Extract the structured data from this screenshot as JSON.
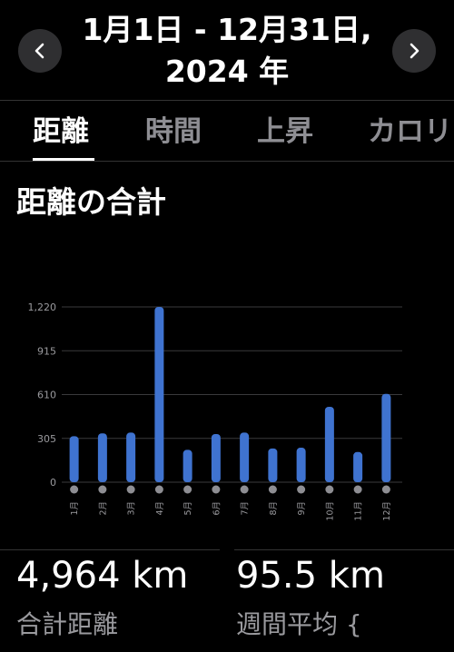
{
  "header": {
    "title_line1": "1月1日 - 12月31日,",
    "title_line2": "2024 年",
    "prev_icon": "chevron-left-icon",
    "next_icon": "chevron-right-icon"
  },
  "tabs": [
    {
      "label": "距離",
      "active": true
    },
    {
      "label": "時間",
      "active": false
    },
    {
      "label": "上昇",
      "active": false
    },
    {
      "label": "カロリ",
      "active": false
    }
  ],
  "section_title": "距離の合計",
  "chart_data": {
    "type": "bar",
    "categories": [
      "1月",
      "2月",
      "3月",
      "4月",
      "5月",
      "6月",
      "7月",
      "8月",
      "9月",
      "10月",
      "11月",
      "12月"
    ],
    "values": [
      320,
      340,
      345,
      1220,
      225,
      335,
      345,
      235,
      240,
      525,
      210,
      615
    ],
    "yticks": [
      "0",
      "305",
      "610",
      "915",
      "1,220"
    ],
    "ylim": [
      0,
      1220
    ],
    "grid": true,
    "colors": {
      "bar": "#3f73d0",
      "grid": "#3a3a3c",
      "marker": "#8e8e93",
      "tick": "#9a9a9e"
    }
  },
  "stats": [
    {
      "value": "4,964 km",
      "label": "合計距離"
    },
    {
      "value": "95.5 km",
      "label": "週間平均 {"
    }
  ]
}
